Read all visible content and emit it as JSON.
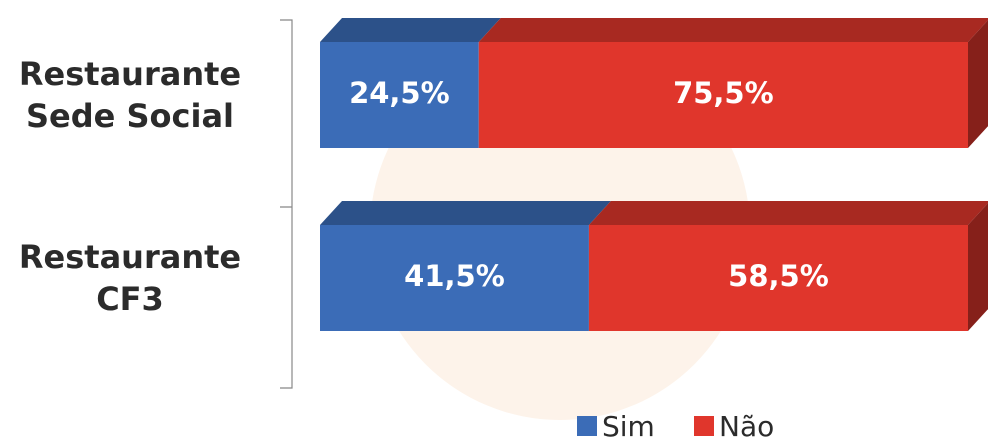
{
  "chart_data": {
    "type": "stacked_bar_horizontal",
    "categories": [
      "Restaurante Sede Social",
      "Restaurante CF3"
    ],
    "series": [
      {
        "name": "Sim",
        "color": "#3b6cb7",
        "values": [
          24.5,
          41.5
        ],
        "value_labels": [
          "24,5%",
          "41,5%"
        ]
      },
      {
        "name": "Não",
        "color": "#e0362c",
        "values": [
          75.5,
          58.5
        ],
        "value_labels": [
          "75,5%",
          "58,5%"
        ]
      }
    ],
    "legend": "bottom"
  }
}
